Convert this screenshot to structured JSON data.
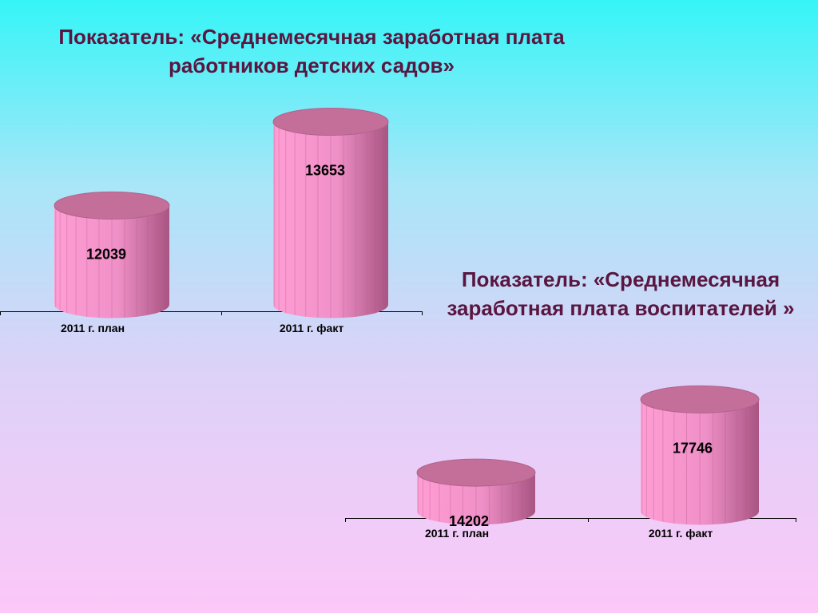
{
  "chart_data": [
    {
      "type": "bar",
      "title": "Показатель: «Среднемесячная заработная плата\nработников детских садов»",
      "categories": [
        "2011 г. план",
        "2011 г. факт"
      ],
      "values": [
        12039,
        13653
      ],
      "ylim": [
        10000,
        14000
      ],
      "bar_style": "3d-cylinder",
      "colors": {
        "body": "#f090c8",
        "top": "#c46f9a",
        "shade": "#a85582"
      },
      "grid": false,
      "legend": "none"
    },
    {
      "type": "bar",
      "title": "Показатель: «Среднемесячная\nзаработная плата воспитателей »",
      "categories": [
        "2011 г. план",
        "2011 г. факт"
      ],
      "values": [
        14202,
        17746
      ],
      "ylim": [
        12000,
        19000
      ],
      "bar_style": "3d-cylinder",
      "colors": {
        "body": "#f090c8",
        "top": "#c46f9a",
        "shade": "#a85582"
      },
      "grid": false,
      "legend": "none"
    }
  ]
}
